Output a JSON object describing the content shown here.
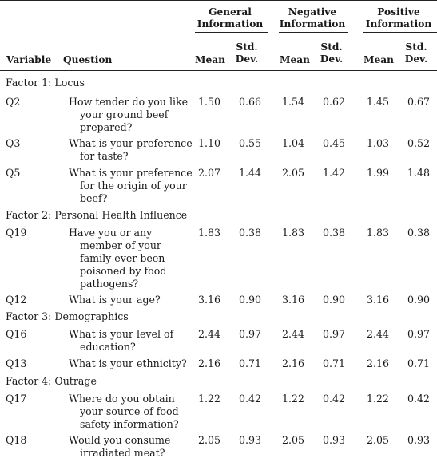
{
  "header": {
    "groups": [
      "General Information",
      "Negative Information",
      "Positive Information"
    ],
    "variable": "Variable",
    "question": "Question",
    "mean": "Mean",
    "std_dev": "Std. Dev."
  },
  "factors": [
    {
      "title": "Factor 1: Locus",
      "rows": [
        {
          "variable": "Q2",
          "question": "How tender do you like your ground beef prepared?",
          "values": [
            "1.50",
            "0.66",
            "1.54",
            "0.62",
            "1.45",
            "0.67"
          ]
        },
        {
          "variable": "Q3",
          "question": "What is your preference for taste?",
          "values": [
            "1.10",
            "0.55",
            "1.04",
            "0.45",
            "1.03",
            "0.52"
          ]
        },
        {
          "variable": "Q5",
          "question": "What is your preference for the origin of your beef?",
          "values": [
            "2.07",
            "1.44",
            "2.05",
            "1.42",
            "1.99",
            "1.48"
          ]
        }
      ]
    },
    {
      "title": "Factor 2: Personal Health Influence",
      "rows": [
        {
          "variable": "Q19",
          "question": "Have you or any member of your family ever been poisoned by food pathogens?",
          "values": [
            "1.83",
            "0.38",
            "1.83",
            "0.38",
            "1.83",
            "0.38"
          ]
        },
        {
          "variable": "Q12",
          "question": "What is your age?",
          "values": [
            "3.16",
            "0.90",
            "3.16",
            "0.90",
            "3.16",
            "0.90"
          ]
        }
      ]
    },
    {
      "title": "Factor 3: Demographics",
      "rows": [
        {
          "variable": "Q16",
          "question": "What is your level of education?",
          "values": [
            "2.44",
            "0.97",
            "2.44",
            "0.97",
            "2.44",
            "0.97"
          ]
        },
        {
          "variable": "Q13",
          "question": "What is your ethnicity?",
          "values": [
            "2.16",
            "0.71",
            "2.16",
            "0.71",
            "2.16",
            "0.71"
          ]
        }
      ]
    },
    {
      "title": "Factor 4: Outrage",
      "rows": [
        {
          "variable": "Q17",
          "question": "Where do you obtain your source of food safety information?",
          "values": [
            "1.22",
            "0.42",
            "1.22",
            "0.42",
            "1.22",
            "0.42"
          ]
        },
        {
          "variable": "Q18",
          "question": "Would you consume irradiated meat?",
          "values": [
            "2.05",
            "0.93",
            "2.05",
            "0.93",
            "2.05",
            "0.93"
          ]
        }
      ]
    }
  ]
}
